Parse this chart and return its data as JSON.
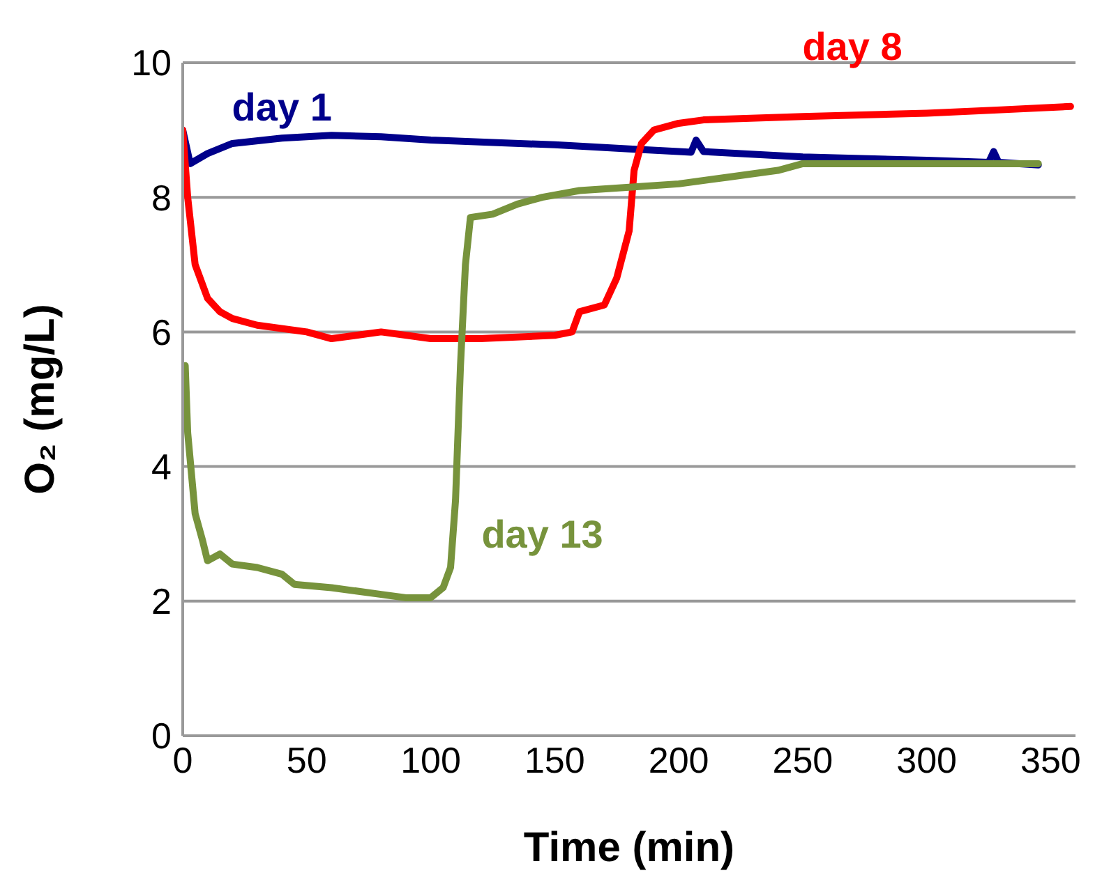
{
  "chart_data": {
    "type": "line",
    "xlabel": "Time (min)",
    "ylabel": "O₂ (mg/L)",
    "xlim": [
      0,
      360
    ],
    "xticks": [
      0,
      50,
      100,
      150,
      200,
      250,
      300,
      350
    ],
    "ylim": [
      0,
      10
    ],
    "yticks": [
      0,
      2,
      4,
      6,
      8,
      10
    ],
    "grid": "y",
    "legend": false,
    "marker": "none",
    "line_style": "solid",
    "series": [
      {
        "name": "day 1",
        "color": "#00008b",
        "x": [
          0,
          3,
          10,
          20,
          40,
          60,
          80,
          100,
          150,
          180,
          200,
          205,
          207,
          210,
          250,
          300,
          325,
          327,
          329,
          345
        ],
        "values": [
          9.0,
          8.5,
          8.65,
          8.8,
          8.88,
          8.92,
          8.9,
          8.85,
          8.78,
          8.72,
          8.68,
          8.67,
          8.85,
          8.68,
          8.6,
          8.55,
          8.52,
          8.68,
          8.52,
          8.48
        ]
      },
      {
        "name": "day 8",
        "color": "#ff0000",
        "x": [
          0,
          2,
          5,
          10,
          15,
          20,
          30,
          50,
          60,
          80,
          100,
          120,
          150,
          157,
          160,
          170,
          175,
          180,
          182,
          185,
          190,
          200,
          210,
          250,
          300,
          330,
          358
        ],
        "values": [
          9.0,
          8.0,
          7.0,
          6.5,
          6.3,
          6.2,
          6.1,
          6.0,
          5.9,
          6.0,
          5.9,
          5.9,
          5.95,
          6.0,
          6.3,
          6.4,
          6.8,
          7.5,
          8.4,
          8.8,
          9.0,
          9.1,
          9.15,
          9.2,
          9.25,
          9.3,
          9.35
        ]
      },
      {
        "name": "day 13",
        "color": "#77933c",
        "x": [
          1,
          2,
          5,
          8,
          10,
          15,
          20,
          30,
          40,
          45,
          60,
          80,
          90,
          100,
          105,
          108,
          110,
          112,
          114,
          116,
          125,
          135,
          145,
          160,
          180,
          200,
          220,
          240,
          250,
          300,
          345
        ],
        "values": [
          5.5,
          4.5,
          3.3,
          2.9,
          2.6,
          2.7,
          2.55,
          2.5,
          2.4,
          2.25,
          2.2,
          2.1,
          2.05,
          2.05,
          2.2,
          2.5,
          3.5,
          5.5,
          7.0,
          7.7,
          7.75,
          7.9,
          8.0,
          8.1,
          8.15,
          8.2,
          8.3,
          8.4,
          8.5,
          8.5,
          8.5
        ]
      }
    ]
  }
}
